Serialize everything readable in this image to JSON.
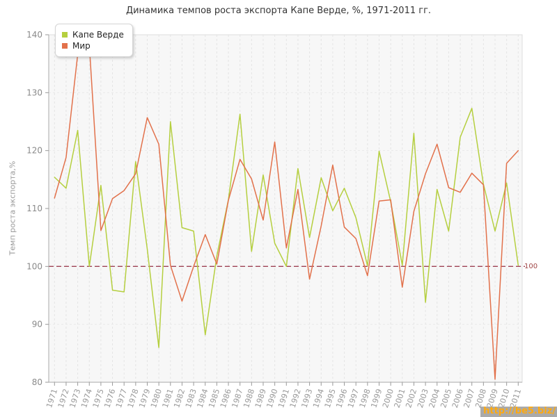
{
  "title": "Динамика темпов роста экспорта Капе Верде, %, 1971-2011 гг.",
  "watermark": "http://be5.biz/",
  "reference_line": {
    "value": 100,
    "label": "100",
    "color": "#9e4254",
    "label_color": "#a04545"
  },
  "chart_data": {
    "type": "line",
    "title": "Динамика темпов роста экспорта Капе Верде, %, 1971-2011 гг.",
    "xlabel": "",
    "ylabel": "Темп роста экспорта,%",
    "ylim": [
      80,
      140
    ],
    "yticks": [
      80,
      90,
      100,
      110,
      120,
      130,
      140
    ],
    "grid": true,
    "legend_position": "top-left",
    "plot_bg": "#f7f7f7",
    "grid_color": "#e4e4e4",
    "axis_color": "#aaaaaa",
    "tick_label_color": "#999999",
    "x": [
      1971,
      1972,
      1973,
      1974,
      1975,
      1976,
      1977,
      1978,
      1979,
      1980,
      1981,
      1982,
      1983,
      1984,
      1985,
      1986,
      1987,
      1988,
      1989,
      1990,
      1991,
      1992,
      1993,
      1994,
      1995,
      1996,
      1997,
      1998,
      1999,
      2000,
      2001,
      2002,
      2003,
      2004,
      2005,
      2006,
      2007,
      2008,
      2009,
      2010,
      2011
    ],
    "series": [
      {
        "name": "Капе Верде",
        "color": "#b5cf3f",
        "values": [
          115.4,
          113.5,
          123.5,
          100.0,
          114.0,
          95.9,
          95.6,
          118.1,
          103.0,
          86.0,
          125.0,
          106.7,
          106.1,
          88.2,
          101.8,
          111.5,
          126.3,
          102.6,
          115.8,
          104.0,
          100.0,
          116.9,
          105.0,
          115.3,
          109.6,
          113.5,
          108.4,
          100.1,
          119.9,
          111.2,
          100.2,
          123.0,
          93.8,
          113.3,
          106.1,
          122.3,
          127.3,
          114.2,
          106.1,
          114.4,
          100.2
        ]
      },
      {
        "name": "Мир",
        "color": "#e2714b",
        "values": [
          111.8,
          118.8,
          136.6,
          138.2,
          106.2,
          111.7,
          113.1,
          116.0,
          125.7,
          121.1,
          100.2,
          94.0,
          100.0,
          105.5,
          100.4,
          111.4,
          118.5,
          115.1,
          108.0,
          121.5,
          103.2,
          113.3,
          97.8,
          107.0,
          117.5,
          106.8,
          104.8,
          98.4,
          111.3,
          111.5,
          96.4,
          109.5,
          116.0,
          121.1,
          113.6,
          112.8,
          116.1,
          114.1,
          80.5,
          117.8,
          120.0
        ]
      }
    ]
  }
}
